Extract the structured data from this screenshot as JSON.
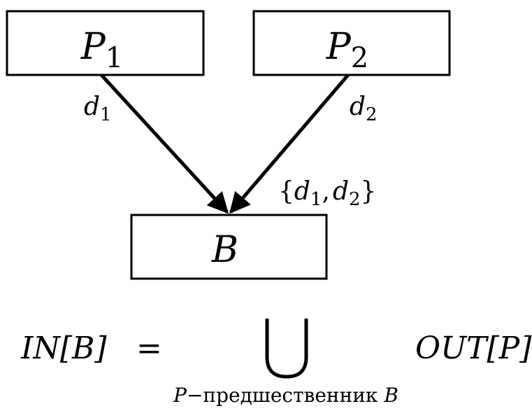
{
  "nodes": {
    "p1": {
      "label": "P",
      "sub": "1"
    },
    "p2": {
      "label": "P",
      "sub": "2"
    },
    "b": {
      "label": "B"
    }
  },
  "edges": {
    "p1_b": {
      "label": "d",
      "sub": "1"
    },
    "p2_b": {
      "label": "d",
      "sub": "2"
    }
  },
  "set_label": {
    "open": "{",
    "d1": "d",
    "d1_sub": "1",
    "comma": ",",
    "d2": "d",
    "d2_sub": "2",
    "close": "}"
  },
  "formula": {
    "lhs": "IN[B]",
    "equals": "=",
    "union_symbol": "⋃",
    "rhs": "OUT[P]",
    "under_p": "P",
    "under_text": "−предшественник ",
    "under_b": "B"
  }
}
